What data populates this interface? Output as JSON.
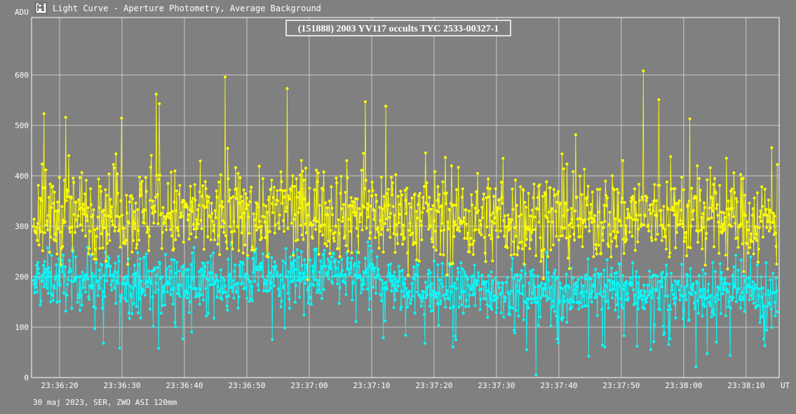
{
  "window": {
    "title": "Light Curve - Aperture Photometry, Average Background",
    "icon": "light-curve-app-icon"
  },
  "footer": {
    "caption": "30 maj 2023, SER, ZWO ASI 120mm"
  },
  "colors": {
    "background": "#808080",
    "grid": "#c8c8c8",
    "axis": "#ffffff",
    "target_series": "#ffff00",
    "comparison_series": "#00ffff"
  },
  "chart_data": {
    "type": "line",
    "title": "(151888) 2003 YV117 occults TYC 2533-00327-1",
    "ylabel": "ADU",
    "xlabel": "UT",
    "ylim": [
      0,
      640
    ],
    "yticks": [
      0,
      100,
      200,
      300,
      400,
      500,
      600
    ],
    "x_range_seconds": [
      15.5,
      135.3
    ],
    "xticks": [
      {
        "label": "23:36:20",
        "seconds": 20
      },
      {
        "label": "23:36:30",
        "seconds": 30
      },
      {
        "label": "23:36:40",
        "seconds": 40
      },
      {
        "label": "23:36:50",
        "seconds": 50
      },
      {
        "label": "23:37:00",
        "seconds": 60
      },
      {
        "label": "23:37:10",
        "seconds": 70
      },
      {
        "label": "23:37:20",
        "seconds": 80
      },
      {
        "label": "23:37:30",
        "seconds": 90
      },
      {
        "label": "23:37:40",
        "seconds": 100
      },
      {
        "label": "23:37:50",
        "seconds": 110
      },
      {
        "label": "23:38:00",
        "seconds": 120
      },
      {
        "label": "23:38:10",
        "seconds": 130
      }
    ],
    "grid": true,
    "markers": true,
    "series": [
      {
        "role": "target",
        "color": "#ffff00",
        "mean_profile": [
          {
            "t": 16,
            "v": 320
          },
          {
            "t": 30,
            "v": 330
          },
          {
            "t": 45,
            "v": 315
          },
          {
            "t": 60,
            "v": 335
          },
          {
            "t": 70,
            "v": 325
          },
          {
            "t": 80,
            "v": 315
          },
          {
            "t": 90,
            "v": 315
          },
          {
            "t": 100,
            "v": 315
          },
          {
            "t": 110,
            "v": 320
          },
          {
            "t": 120,
            "v": 320
          },
          {
            "t": 135,
            "v": 310
          }
        ],
        "spread": 45,
        "notable_peaks": [
          {
            "t": 17.5,
            "v": 523
          },
          {
            "t": 21,
            "v": 516
          },
          {
            "t": 35.5,
            "v": 562
          },
          {
            "t": 36,
            "v": 543
          },
          {
            "t": 46.5,
            "v": 596
          },
          {
            "t": 56.5,
            "v": 573
          },
          {
            "t": 69,
            "v": 547
          },
          {
            "t": 72.3,
            "v": 538
          },
          {
            "t": 113.5,
            "v": 608
          },
          {
            "t": 116,
            "v": 551
          },
          {
            "t": 121,
            "v": 513
          }
        ]
      },
      {
        "role": "comparison",
        "color": "#00ffff",
        "mean_profile": [
          {
            "t": 16,
            "v": 195
          },
          {
            "t": 30,
            "v": 190
          },
          {
            "t": 45,
            "v": 190
          },
          {
            "t": 60,
            "v": 205
          },
          {
            "t": 70,
            "v": 200
          },
          {
            "t": 80,
            "v": 170
          },
          {
            "t": 90,
            "v": 175
          },
          {
            "t": 100,
            "v": 170
          },
          {
            "t": 110,
            "v": 175
          },
          {
            "t": 120,
            "v": 170
          },
          {
            "t": 135,
            "v": 165
          }
        ],
        "spread": 28,
        "notable_dips": [
          {
            "t": 27,
            "v": 68
          },
          {
            "t": 78.5,
            "v": 68
          },
          {
            "t": 83,
            "v": 61
          },
          {
            "t": 107,
            "v": 64
          },
          {
            "t": 112.5,
            "v": 62
          },
          {
            "t": 133,
            "v": 63
          }
        ]
      }
    ]
  }
}
